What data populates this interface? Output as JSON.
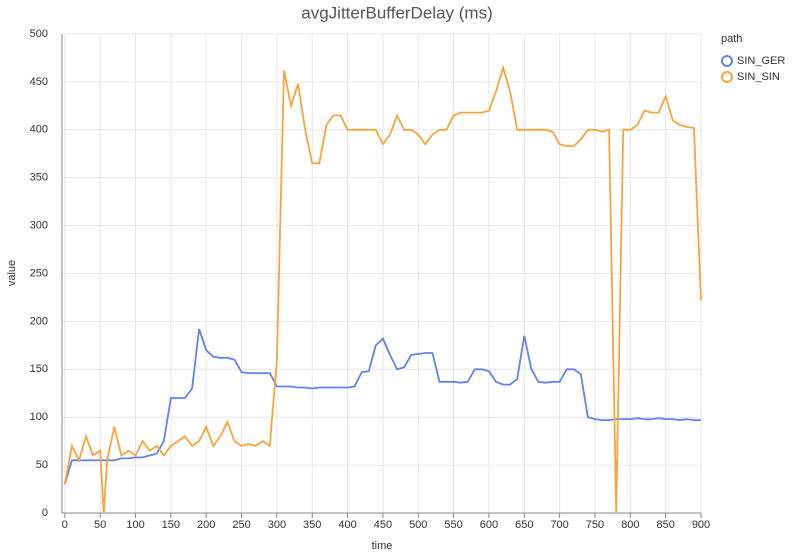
{
  "chart_data": {
    "type": "line",
    "title": "avgJitterBufferDelay (ms)",
    "x_label": "time",
    "y_label": "value",
    "legend_title": "path",
    "legend": "right",
    "grid": true,
    "xlim": [
      -4,
      900
    ],
    "ylim": [
      0,
      500
    ],
    "xticks": [
      0,
      50,
      100,
      150,
      200,
      250,
      300,
      350,
      400,
      450,
      500,
      550,
      600,
      650,
      700,
      750,
      800,
      850,
      900
    ],
    "yticks": [
      0,
      50,
      100,
      150,
      200,
      250,
      300,
      350,
      400,
      450,
      500
    ],
    "x": [
      0,
      10,
      20,
      30,
      40,
      50,
      55,
      60,
      70,
      80,
      90,
      100,
      110,
      120,
      130,
      140,
      150,
      160,
      170,
      180,
      190,
      200,
      210,
      220,
      230,
      240,
      250,
      260,
      270,
      280,
      290,
      300,
      310,
      320,
      330,
      340,
      350,
      360,
      370,
      380,
      390,
      400,
      410,
      420,
      430,
      440,
      450,
      460,
      470,
      480,
      490,
      500,
      510,
      520,
      530,
      540,
      550,
      560,
      570,
      580,
      590,
      600,
      610,
      620,
      630,
      640,
      650,
      660,
      670,
      680,
      690,
      700,
      710,
      720,
      730,
      740,
      750,
      760,
      770,
      780,
      790,
      800,
      810,
      820,
      830,
      840,
      850,
      860,
      870,
      880,
      890,
      900
    ],
    "series": [
      {
        "name": "SIN_GER",
        "color": "#6282ee",
        "values": [
          30,
          55,
          55,
          55,
          55,
          55,
          55,
          55,
          55,
          57,
          57,
          58,
          58,
          60,
          62,
          75,
          120,
          120,
          120,
          130,
          192,
          170,
          163,
          162,
          162,
          160,
          147,
          146,
          146,
          146,
          146,
          132,
          132,
          132,
          131,
          131,
          130,
          131,
          131,
          131,
          131,
          131,
          132,
          147,
          148,
          175,
          182,
          165,
          150,
          152,
          165,
          166,
          167,
          167,
          137,
          137,
          137,
          136,
          137,
          150,
          150,
          148,
          137,
          134,
          134,
          140,
          185,
          150,
          137,
          136,
          137,
          137,
          150,
          150,
          145,
          100,
          98,
          97,
          97,
          98,
          98,
          98,
          99,
          98,
          98,
          99,
          98,
          98,
          97,
          98,
          97,
          97
        ]
      },
      {
        "name": "SIN_SIN",
        "color": "#fba33c",
        "values": [
          30,
          70,
          55,
          80,
          60,
          65,
          0,
          55,
          90,
          60,
          65,
          60,
          75,
          65,
          70,
          60,
          70,
          75,
          80,
          70,
          75,
          90,
          70,
          80,
          95,
          75,
          70,
          72,
          70,
          75,
          70,
          160,
          462,
          425,
          448,
          400,
          365,
          365,
          405,
          415,
          415,
          400,
          400,
          400,
          400,
          400,
          385,
          395,
          415,
          400,
          400,
          395,
          385,
          395,
          400,
          400,
          415,
          418,
          418,
          418,
          418,
          420,
          440,
          465,
          440,
          400,
          400,
          400,
          400,
          400,
          398,
          385,
          383,
          383,
          390,
          400,
          400,
          398,
          400,
          0,
          400,
          400,
          405,
          420,
          418,
          418,
          435,
          410,
          405,
          403,
          402,
          222
        ]
      }
    ]
  }
}
